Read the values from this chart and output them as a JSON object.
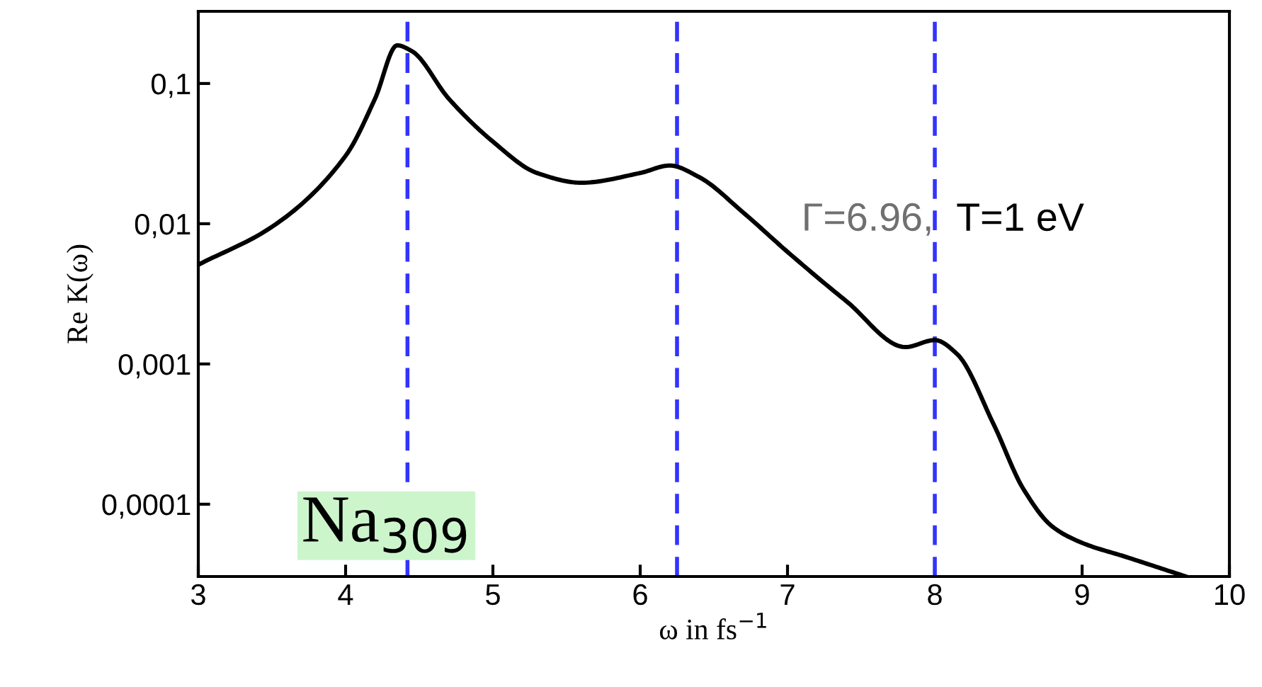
{
  "chart_data": {
    "type": "line",
    "xlabel": "ω in fs$^{−1}$",
    "ylabel": "Re K(ω)",
    "log": "y",
    "xlim": [
      3,
      10
    ],
    "ylim": [
      3.05e-05,
      0.327
    ],
    "xticks": [
      3,
      4,
      5,
      6,
      7,
      8,
      9,
      10
    ],
    "yticks": [
      {
        "value": 0.1,
        "label": "0,1"
      },
      {
        "value": 0.01,
        "label": "0,01"
      },
      {
        "value": 0.001,
        "label": "0,001"
      },
      {
        "value": 0.0001,
        "label": "0,0001"
      }
    ],
    "grid": false,
    "legend": false,
    "line_style": "solid",
    "marker": "none",
    "series": [
      {
        "color": "#000000",
        "x": [
          3.0,
          3.5,
          4.0,
          4.2,
          4.35,
          4.45,
          4.7,
          5.0,
          5.3,
          5.6,
          6.0,
          6.2,
          6.4,
          6.7,
          7.0,
          7.4,
          7.8,
          8.0,
          8.15,
          8.4,
          8.6,
          8.8,
          9.0,
          9.3,
          9.7
        ],
        "values": [
          0.0051,
          0.0095,
          0.0305,
          0.078,
          0.187,
          0.17,
          0.078,
          0.0385,
          0.023,
          0.0196,
          0.023,
          0.026,
          0.0215,
          0.012,
          0.0063,
          0.0028,
          0.00132,
          0.00148,
          0.00118,
          0.00037,
          0.000129,
          6.9e-05,
          5.3e-05,
          4.2e-05,
          3.06e-05
        ]
      }
    ],
    "ref_lines": [
      {
        "axis": "x",
        "value": 4.42,
        "color": "#3333ff",
        "line_style": "dashed"
      },
      {
        "axis": "x",
        "value": 6.25,
        "color": "#3333ff",
        "line_style": "dashed"
      },
      {
        "axis": "x",
        "value": 8.0,
        "color": "#3333ff",
        "line_style": "dashed"
      }
    ],
    "annotations": [
      "Γ=6.96,",
      "T=1 eV",
      "Na$_{309}$"
    ]
  }
}
